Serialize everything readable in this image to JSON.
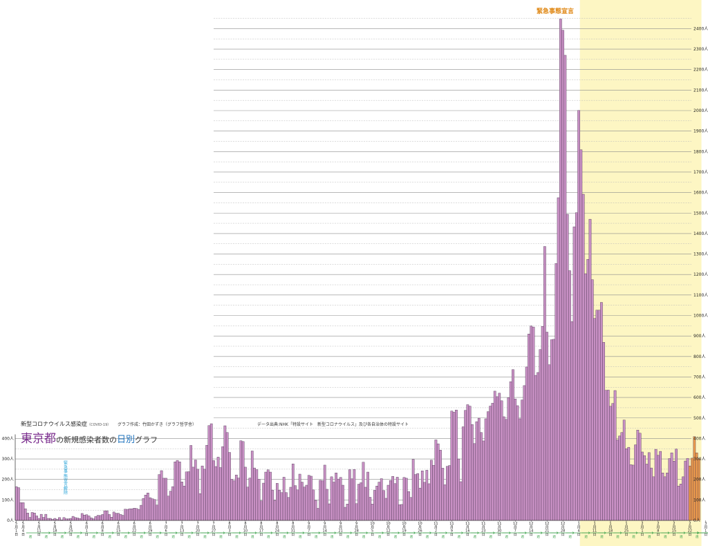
{
  "header": {
    "subtitle": "新型コロナウイルス感染症",
    "subtitle_note": "（COVID-19）",
    "author": "グラフ作成：竹田かずき（グラフ哲学舎）",
    "source": "データ出典:NHK「特設サイト　新型コロナウイルス」及び各自治体の特設サイト",
    "title_pref": "東京都",
    "title_mid": "の新規感染者数の",
    "title_hl": "日別",
    "title_end": "グラフ"
  },
  "annotations": {
    "emergency": "緊急事態宣言",
    "lifted": "緊急事態宣言解除"
  },
  "colors": {
    "bar": "#c890c4",
    "bar_recent": "#eb9a4c",
    "bar_edge": "#4a3550",
    "emergency_band": "#fdf6c3",
    "lifted_text": "#29a3d8"
  },
  "chart_data": {
    "type": "bar",
    "xlabel": "",
    "ylabel": "",
    "ylim": [
      0,
      2450
    ],
    "grid": true,
    "y_ticks_left": [
      "0人",
      "100人",
      "200人",
      "300人",
      "400人"
    ],
    "y_ticks_right": [
      "0人",
      "100人",
      "200人",
      "300人",
      "400人",
      "500人",
      "600人",
      "700人",
      "800人",
      "900人",
      "1000人",
      "1100人",
      "1200人",
      "1300人",
      "1400人",
      "1500人",
      "1600人",
      "1700人",
      "1800人",
      "1900人",
      "2000人",
      "2100人",
      "2200人",
      "2300人",
      "2400人"
    ],
    "x_tick_labels": [
      "5月1日",
      "5月4日",
      "5月11日",
      "5月18日",
      "5月25日",
      "6月1日",
      "6月8日",
      "6月15日",
      "6月22日",
      "6月29日",
      "7月6日",
      "7月13日",
      "7月20日",
      "7月27日",
      "8月3日",
      "8月10日",
      "8月17日",
      "8月24日",
      "8月31日",
      "9月7日",
      "9月14日",
      "9月21日",
      "9月28日",
      "10月5日",
      "10月12日",
      "10月19日",
      "10月26日",
      "11月2日",
      "11月9日",
      "11月16日",
      "11月23日",
      "11月30日",
      "12月7日",
      "12月14日",
      "12月21日",
      "12月28日",
      "1月4日",
      "1月11日",
      "1月18日",
      "1月25日",
      "2月1日",
      "2月8日",
      "2月15日",
      "2月22日",
      "3月1日",
      "3月8日",
      "3月15日",
      "3月22日",
      "3月29日"
    ],
    "week_marker": "週",
    "values": [
      165,
      160,
      87,
      87,
      57,
      36,
      15,
      39,
      36,
      22,
      10,
      30,
      15,
      30,
      10,
      10,
      5,
      10,
      5,
      14,
      3,
      14,
      8,
      8,
      10,
      20,
      14,
      12,
      9,
      34,
      26,
      28,
      22,
      13,
      8,
      19,
      25,
      24,
      29,
      47,
      47,
      29,
      16,
      41,
      35,
      35,
      29,
      25,
      55,
      54,
      57,
      57,
      60,
      58,
      54,
      74,
      107,
      124,
      134,
      111,
      106,
      102,
      75,
      224,
      243,
      206,
      206,
      119,
      143,
      165,
      286,
      293,
      286,
      188,
      168,
      237,
      238,
      366,
      260,
      295,
      250,
      131,
      266,
      250,
      367,
      463,
      472,
      292,
      263,
      309,
      258,
      360,
      462,
      429,
      332,
      201,
      194,
      222,
      207,
      389,
      385,
      260,
      163,
      207,
      339,
      256,
      248,
      201,
      95,
      182,
      236,
      247,
      236,
      148,
      98,
      181,
      148,
      136,
      211,
      136,
      112,
      162,
      276,
      170,
      149,
      226,
      187,
      163,
      172,
      220,
      216,
      149,
      98,
      59,
      196,
      194,
      270,
      152,
      81,
      213,
      187,
      232,
      202,
      210,
      172,
      64,
      80,
      248,
      203,
      249,
      82,
      177,
      184,
      284,
      162,
      236,
      113,
      80,
      147,
      168,
      187,
      204,
      146,
      108,
      172,
      195,
      215,
      180,
      211,
      77,
      78,
      210,
      206,
      141,
      112,
      298,
      224,
      229,
      158,
      242,
      186,
      245,
      179,
      294,
      269,
      393,
      374,
      343,
      255,
      174,
      264,
      268,
      534,
      528,
      539,
      300,
      189,
      457,
      537,
      565,
      558,
      468,
      375,
      482,
      499,
      429,
      388,
      496,
      531,
      558,
      572,
      631,
      604,
      621,
      584,
      506,
      493,
      599,
      677,
      736,
      593,
      560,
      496,
      588,
      658,
      749,
      910,
      949,
      944,
      708,
      722,
      834,
      947,
      1337,
      919,
      760,
      882,
      884,
      1254,
      1575,
      2447,
      2392,
      2270,
      1494,
      1219,
      970,
      1433,
      1502,
      2001,
      1809,
      1592,
      1204,
      1274,
      1470,
      1175,
      986,
      1026,
      1026,
      1064,
      869,
      635,
      636,
      557,
      571,
      634,
      393,
      412,
      429,
      490,
      350,
      357,
      272,
      270,
      369,
      441,
      426,
      334,
      316,
      275,
      331,
      256,
      213,
      347,
      318,
      337,
      232,
      213,
      232,
      302,
      330,
      289,
      348,
      168,
      178,
      213,
      290,
      303,
      266,
      304,
      409,
      330,
      301
    ]
  }
}
